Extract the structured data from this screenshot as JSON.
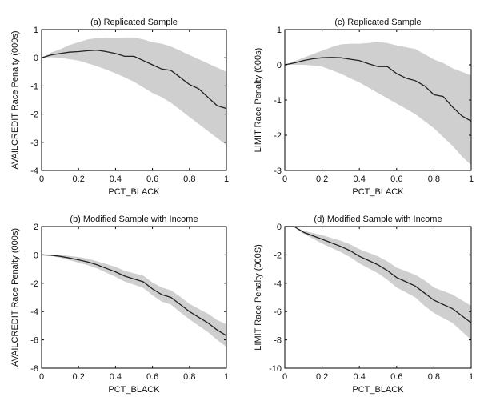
{
  "chart_data": [
    {
      "id": "a",
      "type": "area",
      "title": "(a) Replicated Sample",
      "xlabel": "PCT_BLACK",
      "ylabel": "AVAILCREDIT Race Penalty (000s)",
      "xlim": [
        0,
        1
      ],
      "ylim": [
        -4,
        1
      ],
      "xticks": [
        0,
        0.2,
        0.4,
        0.6,
        0.8,
        1
      ],
      "xtick_labels": [
        "0",
        "0.2",
        "0.4",
        "0.6",
        "0.8",
        "1"
      ],
      "yticks": [
        -4,
        -3,
        -2,
        -1,
        0,
        1
      ],
      "ytick_labels": [
        "-4",
        "-3",
        "-2",
        "-1",
        "0",
        "1"
      ],
      "grid": false,
      "x": [
        0,
        0.05,
        0.1,
        0.15,
        0.2,
        0.25,
        0.3,
        0.35,
        0.4,
        0.45,
        0.5,
        0.55,
        0.6,
        0.65,
        0.7,
        0.75,
        0.8,
        0.85,
        0.9,
        0.95,
        1.0
      ],
      "series": [
        {
          "name": "estimate",
          "values": [
            0,
            0.1,
            0.15,
            0.2,
            0.22,
            0.25,
            0.27,
            0.22,
            0.15,
            0.05,
            0.05,
            -0.1,
            -0.25,
            -0.4,
            -0.45,
            -0.7,
            -0.95,
            -1.1,
            -1.4,
            -1.7,
            -1.8
          ]
        },
        {
          "name": "upper",
          "values": [
            0,
            0.18,
            0.3,
            0.45,
            0.55,
            0.65,
            0.7,
            0.72,
            0.7,
            0.72,
            0.72,
            0.65,
            0.55,
            0.5,
            0.4,
            0.25,
            0.1,
            -0.05,
            -0.2,
            -0.35,
            -0.5
          ]
        },
        {
          "name": "lower",
          "values": [
            0,
            0.02,
            0.0,
            -0.05,
            -0.1,
            -0.2,
            -0.3,
            -0.42,
            -0.55,
            -0.7,
            -0.85,
            -1.05,
            -1.25,
            -1.4,
            -1.6,
            -1.85,
            -2.1,
            -2.35,
            -2.6,
            -2.85,
            -3.1
          ]
        }
      ]
    },
    {
      "id": "c",
      "type": "area",
      "title": "(c) Replicated Sample",
      "xlabel": "PCT_BLACK",
      "ylabel": "LIMIT Race Penalty (000s)",
      "xlim": [
        0,
        1
      ],
      "ylim": [
        -3,
        1
      ],
      "xticks": [
        0,
        0.2,
        0.4,
        0.6,
        0.8,
        1
      ],
      "xtick_labels": [
        "0",
        "0.2",
        "0.4",
        "0.6",
        "0.8",
        "1"
      ],
      "yticks": [
        -3,
        -2,
        -1,
        0,
        1
      ],
      "ytick_labels": [
        "-3",
        "-2",
        "-1",
        "0",
        "1"
      ],
      "grid": false,
      "x": [
        0,
        0.05,
        0.1,
        0.15,
        0.2,
        0.25,
        0.3,
        0.35,
        0.4,
        0.45,
        0.5,
        0.55,
        0.6,
        0.65,
        0.7,
        0.75,
        0.8,
        0.85,
        0.9,
        0.95,
        1.0
      ],
      "series": [
        {
          "name": "estimate",
          "values": [
            0,
            0.05,
            0.12,
            0.17,
            0.2,
            0.21,
            0.2,
            0.16,
            0.12,
            0.03,
            -0.05,
            -0.05,
            -0.25,
            -0.38,
            -0.45,
            -0.6,
            -0.85,
            -0.9,
            -1.2,
            -1.45,
            -1.6
          ]
        },
        {
          "name": "upper",
          "values": [
            0,
            0.1,
            0.2,
            0.3,
            0.4,
            0.5,
            0.58,
            0.6,
            0.6,
            0.62,
            0.65,
            0.62,
            0.55,
            0.5,
            0.45,
            0.3,
            0.15,
            0.05,
            -0.1,
            -0.2,
            -0.3
          ]
        },
        {
          "name": "lower",
          "values": [
            0,
            0.0,
            0.0,
            -0.02,
            -0.05,
            -0.15,
            -0.25,
            -0.38,
            -0.5,
            -0.65,
            -0.8,
            -0.95,
            -1.1,
            -1.25,
            -1.4,
            -1.6,
            -1.8,
            -2.05,
            -2.3,
            -2.6,
            -2.85
          ]
        }
      ]
    },
    {
      "id": "b",
      "type": "area",
      "title": "(b) Modified Sample with Income",
      "xlabel": "PCT_BLACK",
      "ylabel": "AVAILCREDIT Race Penalty (000s)",
      "xlim": [
        0,
        1
      ],
      "ylim": [
        -8,
        2
      ],
      "xticks": [
        0,
        0.2,
        0.4,
        0.6,
        0.8,
        1
      ],
      "xtick_labels": [
        "0",
        "0.2",
        "0.4",
        "0.6",
        "0.8",
        "1"
      ],
      "yticks": [
        -8,
        -6,
        -4,
        -2,
        0,
        2
      ],
      "ytick_labels": [
        "-8",
        "-6",
        "-4",
        "-2",
        "0",
        "2"
      ],
      "grid": false,
      "x": [
        0,
        0.05,
        0.1,
        0.15,
        0.2,
        0.25,
        0.3,
        0.35,
        0.4,
        0.45,
        0.5,
        0.55,
        0.6,
        0.65,
        0.7,
        0.75,
        0.8,
        0.85,
        0.9,
        0.95,
        1.0
      ],
      "series": [
        {
          "name": "estimate",
          "values": [
            0,
            -0.02,
            -0.1,
            -0.22,
            -0.35,
            -0.5,
            -0.7,
            -0.95,
            -1.2,
            -1.5,
            -1.7,
            -1.9,
            -2.4,
            -2.8,
            -3.0,
            -3.5,
            -4.0,
            -4.4,
            -4.8,
            -5.3,
            -5.7
          ]
        },
        {
          "name": "upper",
          "values": [
            0,
            0.03,
            0.0,
            -0.07,
            -0.15,
            -0.27,
            -0.45,
            -0.65,
            -0.85,
            -1.12,
            -1.3,
            -1.47,
            -1.95,
            -2.3,
            -2.5,
            -2.95,
            -3.45,
            -3.8,
            -4.15,
            -4.6,
            -4.9
          ]
        },
        {
          "name": "lower",
          "values": [
            0,
            -0.07,
            -0.2,
            -0.37,
            -0.55,
            -0.73,
            -0.95,
            -1.25,
            -1.55,
            -1.88,
            -2.1,
            -2.33,
            -2.85,
            -3.3,
            -3.5,
            -4.05,
            -4.55,
            -5.0,
            -5.45,
            -6.0,
            -6.5
          ]
        }
      ]
    },
    {
      "id": "d",
      "type": "area",
      "title": "(d) Modified Sample with Income",
      "xlabel": "PCT_BLACK",
      "ylabel": "LIMIT Race Penalty (000S)",
      "xlim": [
        0,
        1
      ],
      "ylim": [
        -10,
        0
      ],
      "xticks": [
        0,
        0.2,
        0.4,
        0.6,
        0.8,
        1
      ],
      "xtick_labels": [
        "0",
        "0.2",
        "0.4",
        "0.6",
        "0.8",
        "1"
      ],
      "yticks": [
        -10,
        -8,
        -6,
        -4,
        -2,
        0
      ],
      "ytick_labels": [
        "-10",
        "-8",
        "-6",
        "-4",
        "-2",
        "0"
      ],
      "grid": false,
      "x": [
        0,
        0.05,
        0.1,
        0.15,
        0.2,
        0.25,
        0.3,
        0.35,
        0.4,
        0.45,
        0.5,
        0.55,
        0.6,
        0.65,
        0.7,
        0.75,
        0.8,
        0.85,
        0.9,
        0.95,
        1.0
      ],
      "series": [
        {
          "name": "estimate",
          "values": [
            0.1,
            0,
            -0.4,
            -0.65,
            -0.9,
            -1.15,
            -1.4,
            -1.7,
            -2.1,
            -2.4,
            -2.7,
            -3.1,
            -3.6,
            -3.9,
            -4.2,
            -4.7,
            -5.2,
            -5.5,
            -5.8,
            -6.3,
            -6.8
          ]
        },
        {
          "name": "upper",
          "values": [
            0.1,
            0.05,
            -0.3,
            -0.45,
            -0.6,
            -0.8,
            -1.0,
            -1.25,
            -1.6,
            -1.85,
            -2.1,
            -2.45,
            -2.9,
            -3.15,
            -3.4,
            -3.8,
            -4.3,
            -4.55,
            -4.8,
            -5.2,
            -5.6
          ]
        },
        {
          "name": "lower",
          "values": [
            0.1,
            -0.05,
            -0.5,
            -0.85,
            -1.2,
            -1.5,
            -1.8,
            -2.15,
            -2.6,
            -2.95,
            -3.3,
            -3.75,
            -4.3,
            -4.65,
            -5.0,
            -5.6,
            -6.1,
            -6.45,
            -6.8,
            -7.4,
            -8.0
          ]
        }
      ]
    }
  ]
}
